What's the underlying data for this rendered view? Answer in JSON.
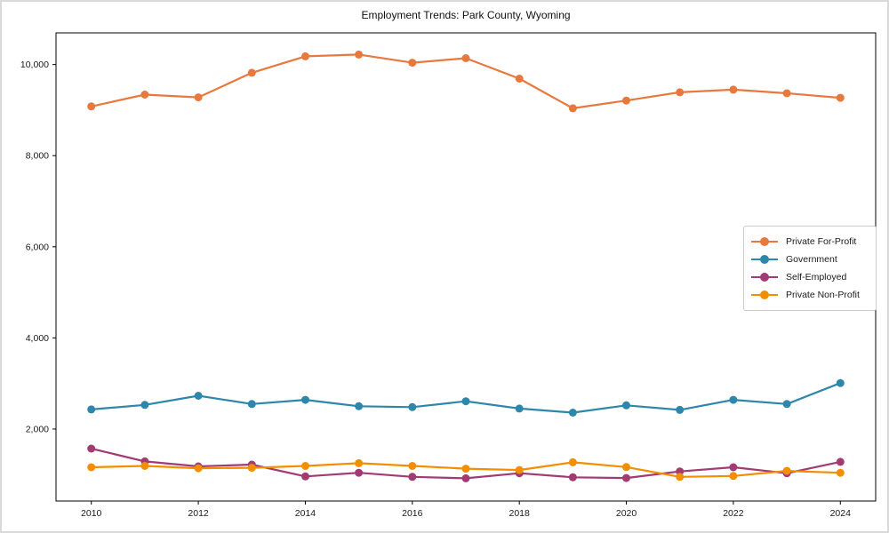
{
  "chart_data": {
    "type": "line",
    "title": "Employment Trends: Park County, Wyoming",
    "x": [
      2010,
      2011,
      2012,
      2013,
      2014,
      2015,
      2016,
      2017,
      2018,
      2019,
      2020,
      2021,
      2022,
      2023,
      2024
    ],
    "series": [
      {
        "name": "Private For-Profit",
        "color": "#E8793E",
        "values": [
          9080,
          9340,
          9280,
          9820,
          10180,
          10220,
          10040,
          10140,
          9690,
          9040,
          9210,
          9390,
          9450,
          9370,
          9270
        ]
      },
      {
        "name": "Government",
        "color": "#2E86AB",
        "values": [
          2430,
          2530,
          2730,
          2550,
          2640,
          2500,
          2480,
          2610,
          2450,
          2360,
          2520,
          2420,
          2640,
          2550,
          3010
        ]
      },
      {
        "name": "Self-Employed",
        "color": "#A23B72",
        "values": [
          1570,
          1290,
          1180,
          1220,
          960,
          1040,
          950,
          920,
          1030,
          940,
          925,
          1070,
          1160,
          1030,
          1280
        ]
      },
      {
        "name": "Private Non-Profit",
        "color": "#F18F01",
        "values": [
          1160,
          1190,
          1140,
          1150,
          1190,
          1250,
          1190,
          1130,
          1100,
          1270,
          1165,
          950,
          970,
          1080,
          1040
        ]
      }
    ],
    "xlabel": "",
    "ylabel": "",
    "xlim": [
      2009.34,
      2024.66
    ],
    "ylim": [
      420,
      10695
    ],
    "xticks": {
      "values": [
        2010,
        2012,
        2014,
        2016,
        2018,
        2020,
        2022,
        2024
      ],
      "labels": [
        "2010",
        "2012",
        "2014",
        "2016",
        "2018",
        "2020",
        "2022",
        "2024"
      ]
    },
    "yticks": {
      "values": [
        2000,
        4000,
        6000,
        8000,
        10000
      ],
      "labels": [
        "2,000",
        "4,000",
        "6,000",
        "8,000",
        "10,000"
      ]
    },
    "grid": false,
    "legend_position": "center right",
    "axis_color": "#000000",
    "tick_label_color": "#1a1a1a"
  }
}
